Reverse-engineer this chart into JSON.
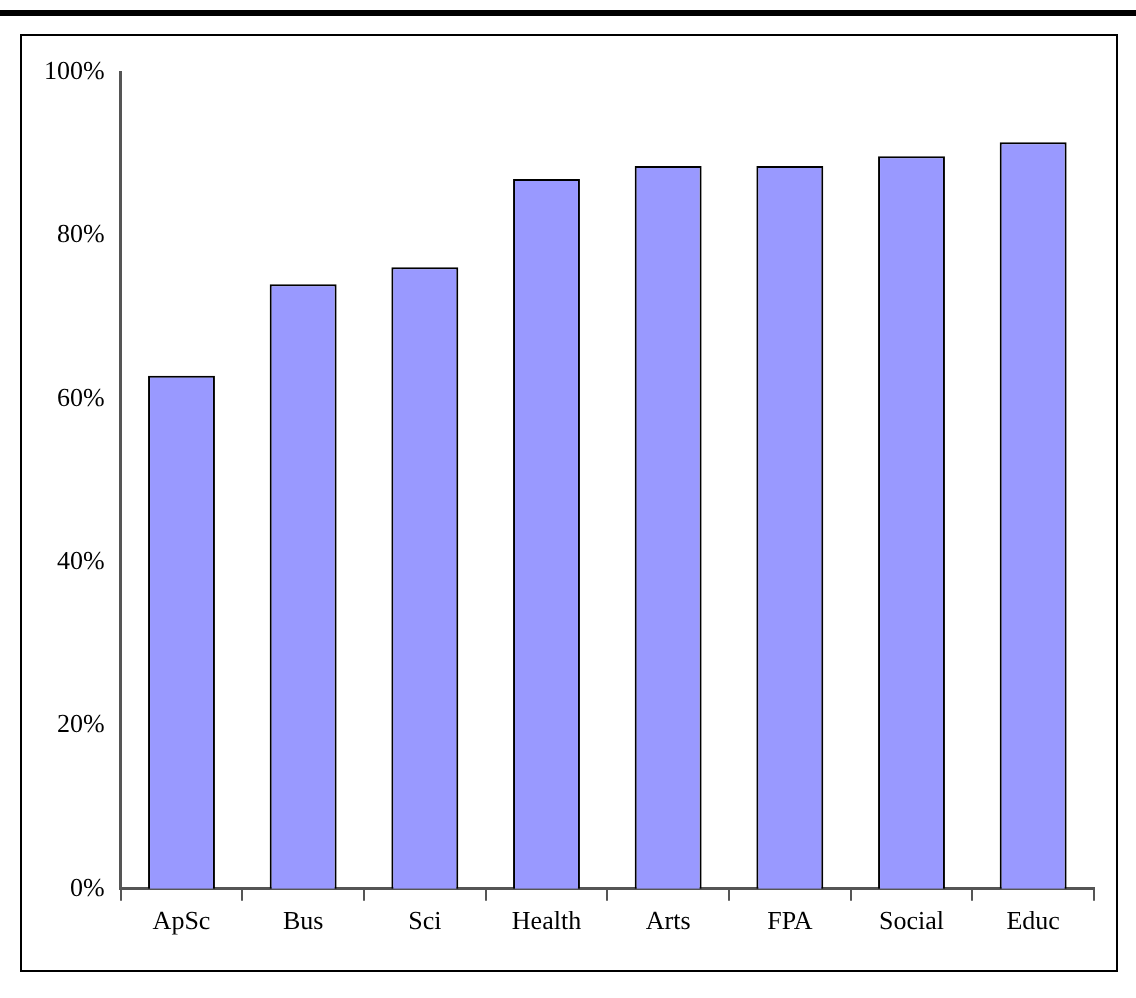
{
  "chart_data": {
    "type": "bar",
    "categories": [
      "ApSc",
      "Bus",
      "Sci",
      "Health",
      "Arts",
      "FPA",
      "Social",
      "Educ"
    ],
    "values": [
      62.8,
      74.0,
      76.1,
      86.9,
      88.5,
      88.5,
      89.7,
      91.4
    ],
    "color": "#9999ff",
    "ylim": [
      0,
      100
    ],
    "yticks": [
      {
        "value": 0,
        "label": "0%"
      },
      {
        "value": 20,
        "label": "20%"
      },
      {
        "value": 40,
        "label": "40%"
      },
      {
        "value": 60,
        "label": "60%"
      },
      {
        "value": 80,
        "label": "80%"
      },
      {
        "value": 100,
        "label": "100%"
      }
    ],
    "grid": false,
    "legend": false
  }
}
